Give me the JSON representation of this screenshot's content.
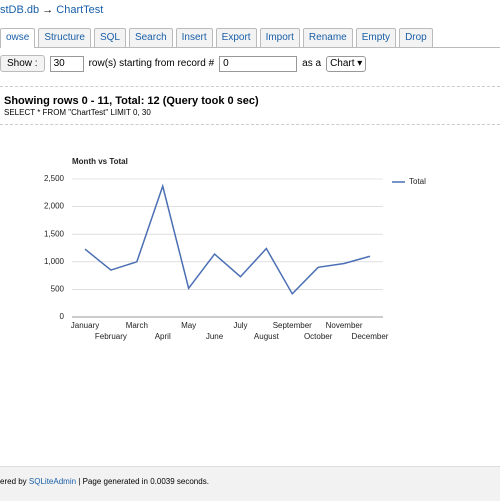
{
  "breadcrumb": {
    "database": "stDB.db",
    "arrow": "→",
    "table": "ChartTest"
  },
  "tabs": [
    "owse",
    "Structure",
    "SQL",
    "Search",
    "Insert",
    "Export",
    "Import",
    "Rename",
    "Empty",
    "Drop"
  ],
  "controls": {
    "button": "Show :",
    "rows": "30",
    "rows_text": "row(s) starting from record #",
    "start": "0",
    "as_text": "as a",
    "view": "Chart"
  },
  "heading": "Showing rows 0 - 11, Total: 12 (Query took 0 sec)",
  "query": "SELECT * FROM \"ChartTest\" LIMIT 0, 30",
  "chart_data": {
    "type": "line",
    "title": "Month vs Total",
    "categories": [
      "January",
      "February",
      "March",
      "April",
      "May",
      "June",
      "July",
      "August",
      "September",
      "October",
      "November",
      "December"
    ],
    "series": [
      {
        "name": "Total",
        "color": "#4a6fb3",
        "values": [
          1230,
          850,
          1000,
          2370,
          520,
          1140,
          730,
          1240,
          420,
          900,
          970,
          1100
        ]
      }
    ],
    "ylim": [
      0,
      2500
    ],
    "yticks": [
      0,
      500,
      {
        "value": 1000,
        "label": "1,000"
      },
      {
        "value": 1500,
        "label": "1,500"
      },
      {
        "value": 2000,
        "label": "2,000"
      },
      {
        "value": 2500,
        "label": "2,500"
      }
    ],
    "grid": true,
    "legend": "right"
  },
  "footer": {
    "prefix": "ered by",
    "link": "SQLiteAdmin",
    "suffix": "| Page generated in 0.0039 seconds."
  }
}
